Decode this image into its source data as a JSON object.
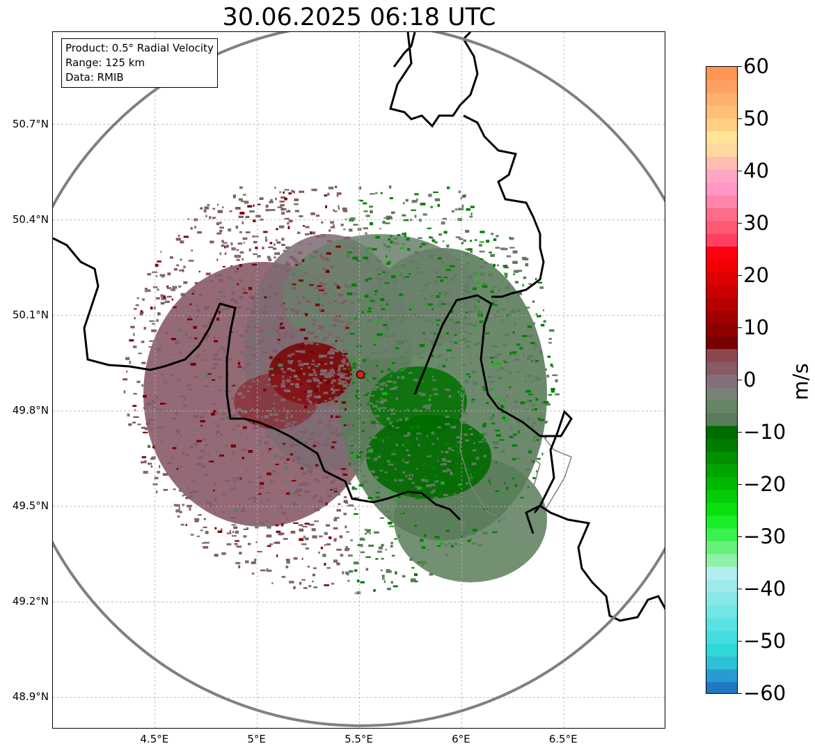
{
  "title": "30.06.2025 06:18 UTC",
  "info_box": {
    "product": "Product: 0.5° Radial Velocity",
    "range": "Range: 125 km",
    "data": "Data: RMIB"
  },
  "map": {
    "lon_range": [
      4.0,
      7.0
    ],
    "lat_range": [
      48.8,
      50.99
    ],
    "lon_ticks": [
      {
        "value": 4.5,
        "label": "4.5°E"
      },
      {
        "value": 5.0,
        "label": "5°E"
      },
      {
        "value": 5.5,
        "label": "5.5°E"
      },
      {
        "value": 6.0,
        "label": "6°E"
      },
      {
        "value": 6.5,
        "label": "6.5°E"
      }
    ],
    "lat_ticks": [
      {
        "value": 50.7,
        "label": "50.7°N"
      },
      {
        "value": 50.4,
        "label": "50.4°N"
      },
      {
        "value": 50.1,
        "label": "50.1°N"
      },
      {
        "value": 49.8,
        "label": "49.8°N"
      },
      {
        "value": 49.5,
        "label": "49.5°N"
      },
      {
        "value": 49.2,
        "label": "49.2°N"
      },
      {
        "value": 48.9,
        "label": "48.9°N"
      }
    ],
    "grid": true,
    "radar_site": {
      "lon": 5.505,
      "lat": 49.914,
      "color": "#e31a1c"
    },
    "range_ring_color": "#808080",
    "border_color": "#000000"
  },
  "colorbar": {
    "unit": "m/s",
    "min": -60,
    "max": 60,
    "ticks": [
      {
        "value": 60,
        "label": "60"
      },
      {
        "value": 50,
        "label": "50"
      },
      {
        "value": 40,
        "label": "40"
      },
      {
        "value": 30,
        "label": "30"
      },
      {
        "value": 20,
        "label": "20"
      },
      {
        "value": 10,
        "label": "10"
      },
      {
        "value": 0,
        "label": "0"
      },
      {
        "value": -10,
        "label": "−10"
      },
      {
        "value": -20,
        "label": "−20"
      },
      {
        "value": -30,
        "label": "−30"
      },
      {
        "value": -40,
        "label": "−40"
      },
      {
        "value": -50,
        "label": "−50"
      },
      {
        "value": -60,
        "label": "−60"
      }
    ],
    "colors": [
      "#1f78c0",
      "#2a9bd0",
      "#2ec0d6",
      "#2ed8d8",
      "#45dede",
      "#5ae2e2",
      "#72e6e6",
      "#88e8e8",
      "#9eeaea",
      "#b2eeee",
      "#8ff0a8",
      "#66f07a",
      "#3cf050",
      "#1aee2a",
      "#08e010",
      "#04cc08",
      "#00b800",
      "#00a400",
      "#009000",
      "#007c00",
      "#006c00",
      "#5a7c5a",
      "#668466",
      "#788276",
      "#847078",
      "#885a64",
      "#8c4850",
      "#7a0000",
      "#8e0000",
      "#a20000",
      "#b60000",
      "#ca0000",
      "#de0000",
      "#f00000",
      "#ff0010",
      "#ff4060",
      "#ff5a74",
      "#ff6e88",
      "#ff86aa",
      "#ff96c4",
      "#ffa6c6",
      "#ffbcb0",
      "#ffd8a0",
      "#ffe496",
      "#ffd080",
      "#ffc078",
      "#ffb070",
      "#ffa060",
      "#ff9654"
    ]
  }
}
